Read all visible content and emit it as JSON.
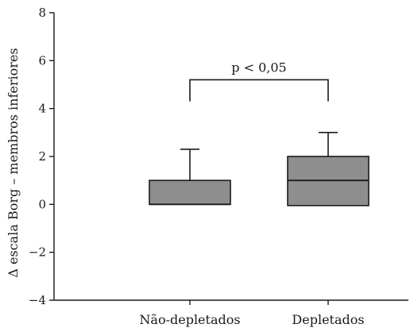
{
  "chart_data": {
    "type": "box",
    "ylabel": "Δ escala Borg – membros inferiores",
    "xlabel": "",
    "title": "",
    "ylim": [
      -4,
      8
    ],
    "yticks": [
      -4,
      -2,
      0,
      2,
      4,
      6,
      8
    ],
    "ytick_labels": [
      "−4",
      "−2",
      "0",
      "2",
      "4",
      "6",
      "8"
    ],
    "categories": [
      "Não-depletados",
      "Depletados"
    ],
    "boxes": [
      {
        "category": "Não-depletados",
        "q1": 0,
        "median": 0,
        "q3": 1,
        "whisker_high": 2.3
      },
      {
        "category": "Depletados",
        "q1": -0.05,
        "median": 1,
        "q3": 2,
        "whisker_high": 3.0
      }
    ],
    "annotation": {
      "text": "p < 0,05",
      "y": 5.2,
      "drop_to": 4.3
    },
    "colors": {
      "box_fill": "#8e8e8e",
      "stroke": "#1a1a1a"
    },
    "grid": false,
    "legend": "none"
  }
}
